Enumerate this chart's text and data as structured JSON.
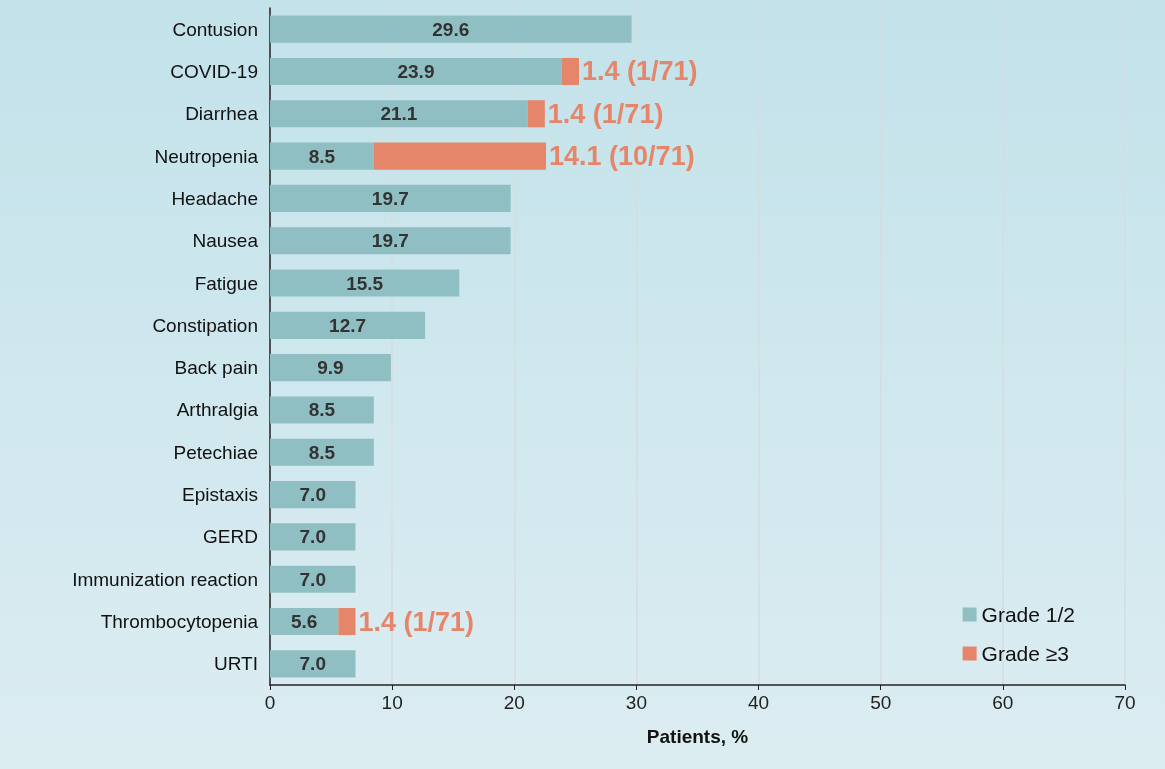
{
  "chart_data": {
    "type": "bar",
    "orientation": "horizontal",
    "stacked": true,
    "categories": [
      "Contusion",
      "COVID-19",
      "Diarrhea",
      "Neutropenia",
      "Headache",
      "Nausea",
      "Fatigue",
      "Constipation",
      "Back pain",
      "Arthralgia",
      "Petechiae",
      "Epistaxis",
      "GERD",
      "Immunization reaction",
      "Thrombocytopenia",
      "URTI"
    ],
    "series": [
      {
        "name": "Grade 1/2",
        "color": "#8fbfc2",
        "values": [
          29.6,
          23.9,
          21.1,
          8.5,
          19.7,
          19.7,
          15.5,
          12.7,
          9.9,
          8.5,
          8.5,
          7.0,
          7.0,
          7.0,
          5.6,
          7.0
        ],
        "value_labels": [
          "29.6",
          "23.9",
          "21.1",
          "8.5",
          "19.7",
          "19.7",
          "15.5",
          "12.7",
          "9.9",
          "8.5",
          "8.5",
          "7.0",
          "7.0",
          "7.0",
          "5.6",
          "7.0"
        ]
      },
      {
        "name": "Grade ≥3",
        "color": "#e5866a",
        "values": [
          null,
          1.4,
          1.4,
          14.1,
          null,
          null,
          null,
          null,
          null,
          null,
          null,
          null,
          null,
          null,
          1.4,
          null
        ],
        "value_labels": [
          null,
          "1.4 (1/71)",
          "1.4 (1/71)",
          "14.1 (10/71)",
          null,
          null,
          null,
          null,
          null,
          null,
          null,
          null,
          null,
          null,
          "1.4 (1/71)",
          null
        ]
      }
    ],
    "xlabel": "Patients, %",
    "xlim": [
      0,
      70
    ],
    "xticks": [
      0,
      10,
      20,
      30,
      40,
      50,
      60,
      70
    ],
    "grid": "x",
    "legend": "bottom right"
  }
}
